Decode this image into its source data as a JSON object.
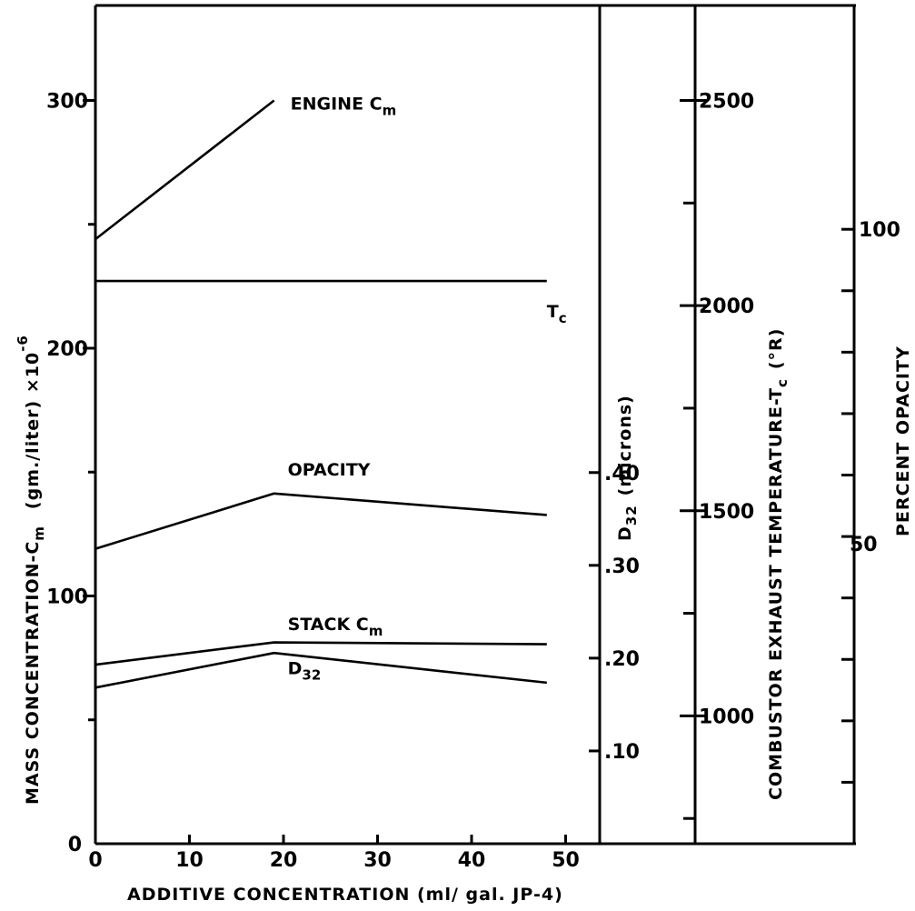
{
  "chart_data": {
    "type": "line",
    "title": "",
    "xlabel": "ADDITIVE CONCENTRATION (ml/ gal. JP-4)",
    "xlim": [
      0,
      54
    ],
    "x_ticks": [
      0,
      10,
      20,
      30,
      40,
      50
    ],
    "axes": {
      "mass": {
        "label": "MASS CONCENTRATION-C",
        "label_sub": "m",
        "label_units": "(gm./liter) ×10",
        "label_exp": "-6",
        "ylim": [
          0,
          340
        ],
        "ticks": [
          0,
          100,
          200,
          300
        ],
        "minor_ticks": [
          50,
          150,
          250
        ]
      },
      "d32": {
        "label": "D",
        "label_sub": "32",
        "label_units": "(microns)",
        "ticks": [
          0.1,
          0.2,
          0.3,
          0.4
        ],
        "tick_labels": [
          ".10",
          ".20",
          ".30",
          ".40"
        ],
        "data_per_mass_unit": 0.00267,
        "offset_mass": 0
      },
      "temperature": {
        "label": "COMBUSTOR EXHAUST TEMPERATURE-T",
        "label_sub": "c",
        "label_units": "(°R)",
        "ticks": [
          1000,
          1500,
          2000,
          2500
        ],
        "minor_ticks": [
          750,
          1250,
          1750,
          2250
        ],
        "mass_at_zero_temp": -114,
        "mass_per_temp_unit": 0.1656
      },
      "opacity": {
        "label": "PERCENT OPACITY",
        "ticks": [
          50,
          100
        ],
        "minor_ticks": [
          10,
          20,
          30,
          40,
          60,
          70,
          80,
          90
        ],
        "mass_per_opacity_unit": 2.48
      }
    },
    "series": [
      {
        "name": "ENGINE C",
        "name_sub": "m",
        "axis": "mass",
        "x": [
          0,
          19
        ],
        "y": [
          244,
          300
        ]
      },
      {
        "name": "T",
        "name_sub": "c",
        "axis": "temperature",
        "x": [
          0,
          48
        ],
        "y": [
          2060,
          2060
        ]
      },
      {
        "name": "OPACITY",
        "axis": "opacity",
        "x": [
          0,
          19,
          48
        ],
        "y": [
          48,
          57,
          53.5
        ]
      },
      {
        "name": "STACK C",
        "name_sub": "m",
        "axis": "mass",
        "x": [
          0,
          19,
          48
        ],
        "y": [
          63,
          77,
          65
        ]
      },
      {
        "name": "D",
        "name_sub": "32",
        "axis": "d32",
        "x": [
          0,
          19,
          48
        ],
        "y": [
          0.193,
          0.217,
          0.215
        ]
      }
    ]
  }
}
